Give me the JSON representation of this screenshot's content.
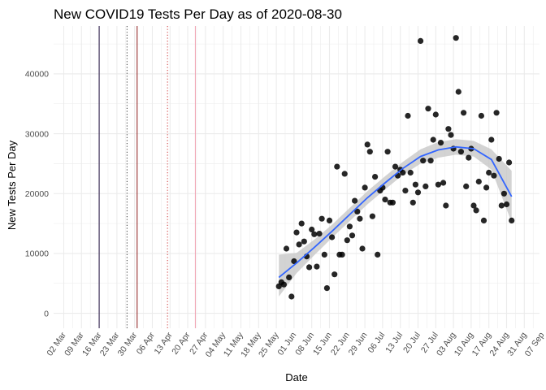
{
  "chart_data": {
    "type": "scatter",
    "title": "New COVID19 Tests Per Day as of 2020-08-30",
    "xlabel": "Date",
    "ylabel": "New Tests Per Day",
    "x_range": [
      "2020-02-27",
      "2020-09-06"
    ],
    "ylim": [
      -2500,
      48000
    ],
    "y_ticks": [
      0,
      10000,
      20000,
      30000,
      40000
    ],
    "x_ticks": [
      {
        "date": "2020-03-02",
        "label": "02 Mar"
      },
      {
        "date": "2020-03-09",
        "label": "09 Mar"
      },
      {
        "date": "2020-03-16",
        "label": "16 Mar"
      },
      {
        "date": "2020-03-23",
        "label": "23 Mar"
      },
      {
        "date": "2020-03-30",
        "label": "30 Mar"
      },
      {
        "date": "2020-04-06",
        "label": "06 Apr"
      },
      {
        "date": "2020-04-13",
        "label": "13 Apr"
      },
      {
        "date": "2020-04-20",
        "label": "20 Apr"
      },
      {
        "date": "2020-04-27",
        "label": "27 Apr"
      },
      {
        "date": "2020-05-04",
        "label": "04 May"
      },
      {
        "date": "2020-05-11",
        "label": "11 May"
      },
      {
        "date": "2020-05-18",
        "label": "18 May"
      },
      {
        "date": "2020-05-25",
        "label": "25 May"
      },
      {
        "date": "2020-06-01",
        "label": "01 Jun"
      },
      {
        "date": "2020-06-08",
        "label": "08 Jun"
      },
      {
        "date": "2020-06-15",
        "label": "15 Jun"
      },
      {
        "date": "2020-06-22",
        "label": "22 Jun"
      },
      {
        "date": "2020-06-29",
        "label": "29 Jun"
      },
      {
        "date": "2020-07-06",
        "label": "06 Jul"
      },
      {
        "date": "2020-07-13",
        "label": "13 Jul"
      },
      {
        "date": "2020-07-20",
        "label": "20 Jul"
      },
      {
        "date": "2020-07-27",
        "label": "27 Jul"
      },
      {
        "date": "2020-08-03",
        "label": "03 Aug"
      },
      {
        "date": "2020-08-10",
        "label": "10 Aug"
      },
      {
        "date": "2020-08-17",
        "label": "17 Aug"
      },
      {
        "date": "2020-08-24",
        "label": "24 Aug"
      },
      {
        "date": "2020-08-31",
        "label": "31 Aug"
      },
      {
        "date": "2020-09-07",
        "label": "07 Sep"
      }
    ],
    "vlines": [
      {
        "date": "2020-03-16",
        "color": "#1a0a3a",
        "style": "solid"
      },
      {
        "date": "2020-03-27",
        "color": "#333333",
        "style": "dotted"
      },
      {
        "date": "2020-03-31",
        "color": "#8b1a1a",
        "style": "solid"
      },
      {
        "date": "2020-04-12",
        "color": "#cc3333",
        "style": "dotted"
      },
      {
        "date": "2020-04-23",
        "color": "#f0a0b0",
        "style": "solid"
      }
    ],
    "series": [
      {
        "values": [
          {
            "x": "2020-05-26",
            "y": 4500
          },
          {
            "x": "2020-05-27",
            "y": 5200
          },
          {
            "x": "2020-05-28",
            "y": 4800
          },
          {
            "x": "2020-05-29",
            "y": 10800
          },
          {
            "x": "2020-05-30",
            "y": 6000
          },
          {
            "x": "2020-05-31",
            "y": 2800
          },
          {
            "x": "2020-06-01",
            "y": 8700
          },
          {
            "x": "2020-06-02",
            "y": 13500
          },
          {
            "x": "2020-06-03",
            "y": 11500
          },
          {
            "x": "2020-06-04",
            "y": 15000
          },
          {
            "x": "2020-06-05",
            "y": 12000
          },
          {
            "x": "2020-06-06",
            "y": 9500
          },
          {
            "x": "2020-06-07",
            "y": 7700
          },
          {
            "x": "2020-06-08",
            "y": 14000
          },
          {
            "x": "2020-06-09",
            "y": 13200
          },
          {
            "x": "2020-06-10",
            "y": 7800
          },
          {
            "x": "2020-06-11",
            "y": 13300
          },
          {
            "x": "2020-06-12",
            "y": 15800
          },
          {
            "x": "2020-06-13",
            "y": 9800
          },
          {
            "x": "2020-06-14",
            "y": 4200
          },
          {
            "x": "2020-06-15",
            "y": 15500
          },
          {
            "x": "2020-06-16",
            "y": 12700
          },
          {
            "x": "2020-06-17",
            "y": 6500
          },
          {
            "x": "2020-06-18",
            "y": 24500
          },
          {
            "x": "2020-06-19",
            "y": 9800
          },
          {
            "x": "2020-06-20",
            "y": 9800
          },
          {
            "x": "2020-06-21",
            "y": 23300
          },
          {
            "x": "2020-06-22",
            "y": 12200
          },
          {
            "x": "2020-06-23",
            "y": 14500
          },
          {
            "x": "2020-06-24",
            "y": 13000
          },
          {
            "x": "2020-06-25",
            "y": 18800
          },
          {
            "x": "2020-06-26",
            "y": 17000
          },
          {
            "x": "2020-06-27",
            "y": 15800
          },
          {
            "x": "2020-06-28",
            "y": 10800
          },
          {
            "x": "2020-06-29",
            "y": 21000
          },
          {
            "x": "2020-06-30",
            "y": 28200
          },
          {
            "x": "2020-07-01",
            "y": 27000
          },
          {
            "x": "2020-07-02",
            "y": 16200
          },
          {
            "x": "2020-07-03",
            "y": 22800
          },
          {
            "x": "2020-07-04",
            "y": 9800
          },
          {
            "x": "2020-07-05",
            "y": 20500
          },
          {
            "x": "2020-07-06",
            "y": 21000
          },
          {
            "x": "2020-07-07",
            "y": 19000
          },
          {
            "x": "2020-07-08",
            "y": 27000
          },
          {
            "x": "2020-07-09",
            "y": 18500
          },
          {
            "x": "2020-07-10",
            "y": 18500
          },
          {
            "x": "2020-07-11",
            "y": 24500
          },
          {
            "x": "2020-07-12",
            "y": 23000
          },
          {
            "x": "2020-07-13",
            "y": 24000
          },
          {
            "x": "2020-07-14",
            "y": 23500
          },
          {
            "x": "2020-07-15",
            "y": 20500
          },
          {
            "x": "2020-07-16",
            "y": 33000
          },
          {
            "x": "2020-07-17",
            "y": 23500
          },
          {
            "x": "2020-07-18",
            "y": 18500
          },
          {
            "x": "2020-07-19",
            "y": 21500
          },
          {
            "x": "2020-07-20",
            "y": 20200
          },
          {
            "x": "2020-07-21",
            "y": 45500
          },
          {
            "x": "2020-07-22",
            "y": 25500
          },
          {
            "x": "2020-07-23",
            "y": 21200
          },
          {
            "x": "2020-07-24",
            "y": 34200
          },
          {
            "x": "2020-07-25",
            "y": 25500
          },
          {
            "x": "2020-07-26",
            "y": 29000
          },
          {
            "x": "2020-07-27",
            "y": 33200
          },
          {
            "x": "2020-07-28",
            "y": 21500
          },
          {
            "x": "2020-07-29",
            "y": 28500
          },
          {
            "x": "2020-07-30",
            "y": 21800
          },
          {
            "x": "2020-07-31",
            "y": 18000
          },
          {
            "x": "2020-08-01",
            "y": 30800
          },
          {
            "x": "2020-08-02",
            "y": 29800
          },
          {
            "x": "2020-08-03",
            "y": 27500
          },
          {
            "x": "2020-08-04",
            "y": 46000
          },
          {
            "x": "2020-08-05",
            "y": 37000
          },
          {
            "x": "2020-08-06",
            "y": 27000
          },
          {
            "x": "2020-08-07",
            "y": 33500
          },
          {
            "x": "2020-08-08",
            "y": 21200
          },
          {
            "x": "2020-08-09",
            "y": 26000
          },
          {
            "x": "2020-08-10",
            "y": 27500
          },
          {
            "x": "2020-08-11",
            "y": 18000
          },
          {
            "x": "2020-08-12",
            "y": 17200
          },
          {
            "x": "2020-08-13",
            "y": 22000
          },
          {
            "x": "2020-08-14",
            "y": 33000
          },
          {
            "x": "2020-08-15",
            "y": 15500
          },
          {
            "x": "2020-08-16",
            "y": 21000
          },
          {
            "x": "2020-08-17",
            "y": 23500
          },
          {
            "x": "2020-08-18",
            "y": 29000
          },
          {
            "x": "2020-08-19",
            "y": 23000
          },
          {
            "x": "2020-08-20",
            "y": 33500
          },
          {
            "x": "2020-08-21",
            "y": 25800
          },
          {
            "x": "2020-08-22",
            "y": 18000
          },
          {
            "x": "2020-08-23",
            "y": 20000
          },
          {
            "x": "2020-08-24",
            "y": 18200
          },
          {
            "x": "2020-08-25",
            "y": 25200
          },
          {
            "x": "2020-08-26",
            "y": 15500
          }
        ]
      }
    ],
    "smooth": {
      "values": [
        {
          "x": "2020-05-26",
          "y": 6000,
          "lo": 2800,
          "hi": 9800
        },
        {
          "x": "2020-06-02",
          "y": 8400,
          "lo": 6700,
          "hi": 10100
        },
        {
          "x": "2020-06-09",
          "y": 11000,
          "lo": 9700,
          "hi": 12300
        },
        {
          "x": "2020-06-16",
          "y": 13700,
          "lo": 12600,
          "hi": 14800
        },
        {
          "x": "2020-06-23",
          "y": 16500,
          "lo": 15400,
          "hi": 17600
        },
        {
          "x": "2020-06-30",
          "y": 19300,
          "lo": 18200,
          "hi": 20400
        },
        {
          "x": "2020-07-07",
          "y": 21800,
          "lo": 20700,
          "hi": 22900
        },
        {
          "x": "2020-07-14",
          "y": 24200,
          "lo": 23100,
          "hi": 25300
        },
        {
          "x": "2020-07-21",
          "y": 26200,
          "lo": 25000,
          "hi": 27400
        },
        {
          "x": "2020-07-28",
          "y": 27300,
          "lo": 26000,
          "hi": 28600
        },
        {
          "x": "2020-08-04",
          "y": 27800,
          "lo": 26500,
          "hi": 29100
        },
        {
          "x": "2020-08-11",
          "y": 27500,
          "lo": 26200,
          "hi": 28800
        },
        {
          "x": "2020-08-18",
          "y": 25700,
          "lo": 24000,
          "hi": 27400
        },
        {
          "x": "2020-08-26",
          "y": 19500,
          "lo": 15200,
          "hi": 23800
        }
      ]
    },
    "colors": {
      "points": "#000000",
      "smooth_line": "#3366ff",
      "ribbon": "#c4c4c4",
      "grid": "#ebebeb",
      "tick_text": "#4d4d4d"
    },
    "grid": true,
    "legend": "none"
  }
}
